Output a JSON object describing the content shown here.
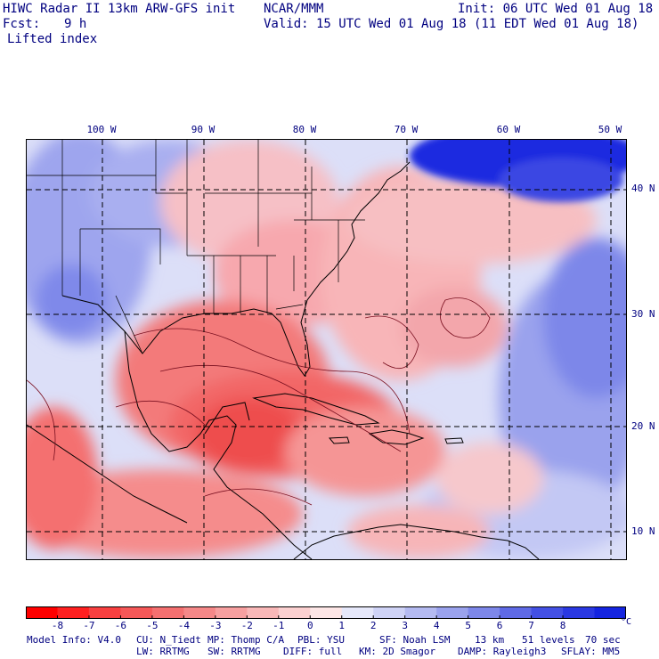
{
  "header": {
    "title": "HIWC Radar II 13km ARW-GFS init",
    "org": "NCAR/MMM",
    "init": "Init: 06 UTC Wed 01 Aug 18",
    "fcst_label": "Fcst:",
    "fcst_value": "9 h",
    "valid": "Valid: 15 UTC Wed 01 Aug 18 (11 EDT Wed 01 Aug 18)",
    "field": "Lifted index"
  },
  "map": {
    "lon_labels": [
      "100 W",
      "90 W",
      "80 W",
      "70 W",
      "60 W",
      "50 W"
    ],
    "lat_labels": [
      "40 N",
      "30 N",
      "20 N",
      "10 N"
    ],
    "colors": {
      "strong_negative": "#f03030",
      "negative": "#f57a7a",
      "weak_negative": "#fbc6c6",
      "neutral": "#f4f4fb",
      "weak_positive": "#c8cdf3",
      "positive": "#7f89ea",
      "strong_positive": "#1a2ae0",
      "land_lines": "#000000",
      "grid": "#000000"
    }
  },
  "colorbar": {
    "ticks": [
      "-8",
      "-7",
      "-6",
      "-5",
      "-4",
      "-3",
      "-2",
      "-1",
      "0",
      "1",
      "2",
      "3",
      "4",
      "5",
      "6",
      "7",
      "8"
    ],
    "unit": "°C",
    "colors": [
      "#ff0000",
      "#ff2020",
      "#f84040",
      "#f55858",
      "#f47070",
      "#f58888",
      "#f7a0a0",
      "#f9b8b8",
      "#fbd0d0",
      "#fde6e6",
      "#e6e8fa",
      "#cfd3f6",
      "#b4baf1",
      "#9aa2ed",
      "#7d87e9",
      "#5f6ae6",
      "#4350e4",
      "#2a38e2",
      "#1424e0"
    ]
  },
  "footer": {
    "line1_model": "Model Info: V4.0",
    "line1_cu": "CU: N_Tiedt",
    "line1_mp": "MP: Thomp C/A",
    "line1_pbl": "PBL: YSU",
    "line1_sf": "SF: Noah LSM",
    "line1_res": "13 km",
    "line1_levels": "51 levels",
    "line1_dt": "70 sec",
    "line2_lw": "LW: RRTMG",
    "line2_sw": "SW: RRTMG",
    "line2_diff": "DIFF: full",
    "line2_km": "KM: 2D Smagor",
    "line2_damp": "DAMP: Rayleigh3",
    "line2_sflay": "SFLAY: MM5"
  }
}
